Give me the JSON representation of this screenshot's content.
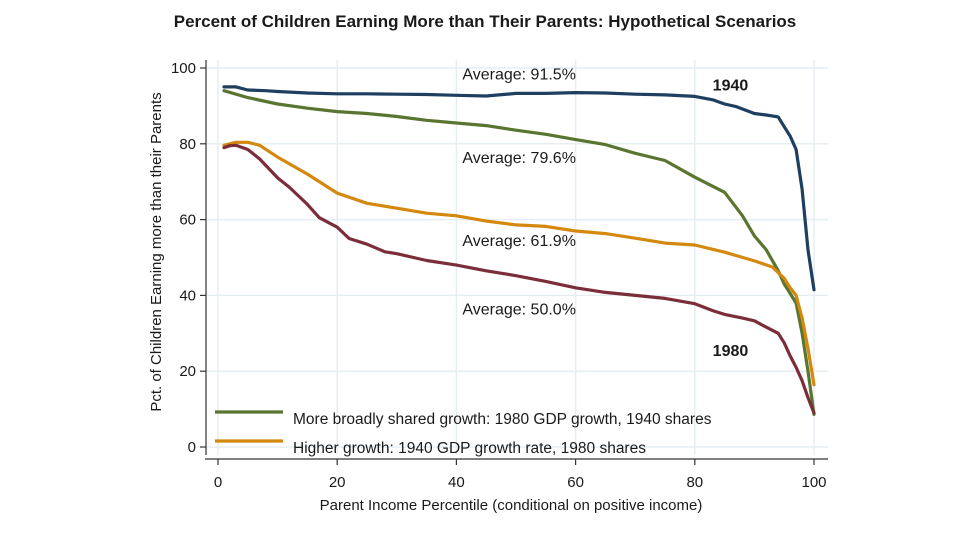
{
  "chart_data": {
    "type": "line",
    "title": "Percent of Children Earning More than Their Parents: Hypothetical Scenarios",
    "xlabel": "Parent Income Percentile (conditional on positive income)",
    "ylabel": "Pct. of Children Earning more than their Parents",
    "xlim": [
      0,
      100
    ],
    "ylim": [
      0,
      100
    ],
    "xticks": [
      0,
      20,
      40,
      60,
      80,
      100
    ],
    "yticks": [
      0,
      20,
      40,
      60,
      80,
      100
    ],
    "grid": true,
    "legend_position": "bottom-center",
    "series": [
      {
        "name": "1940",
        "color": "#1f3f60",
        "x": [
          1,
          3,
          5,
          8,
          10,
          15,
          20,
          25,
          30,
          35,
          40,
          45,
          50,
          55,
          60,
          65,
          70,
          75,
          80,
          83,
          85,
          87,
          90,
          92,
          94,
          95,
          96,
          97,
          98,
          99,
          100
        ],
        "y": [
          95,
          95,
          94.2,
          94,
          93.8,
          93.4,
          93.2,
          93.2,
          93.1,
          93,
          92.8,
          92.6,
          93.3,
          93.3,
          93.5,
          93.4,
          93.1,
          92.9,
          92.5,
          91.6,
          90.5,
          89.8,
          88,
          87.6,
          87.1,
          84.5,
          82,
          78.5,
          68,
          52,
          41.5
        ]
      },
      {
        "name": "More broadly shared growth: 1980 GDP growth, 1940 shares",
        "color": "#5a7530",
        "x": [
          1,
          5,
          10,
          15,
          20,
          25,
          30,
          35,
          40,
          45,
          50,
          55,
          60,
          65,
          70,
          75,
          80,
          85,
          88,
          90,
          92,
          94,
          95,
          96,
          97,
          98,
          99,
          100
        ],
        "y": [
          94,
          92.2,
          90.5,
          89.4,
          88.5,
          88,
          87.2,
          86.2,
          85.5,
          84.8,
          83.6,
          82.5,
          81.1,
          79.8,
          77.5,
          75.6,
          71.2,
          67.2,
          61,
          55.7,
          52,
          46.5,
          43,
          40.5,
          38,
          30,
          20,
          8.6
        ]
      },
      {
        "name": "Higher growth: 1940 GDP growth rate, 1980 shares",
        "color": "#d4880e",
        "x": [
          1,
          2,
          3,
          5,
          7,
          10,
          15,
          20,
          25,
          30,
          35,
          40,
          45,
          50,
          55,
          60,
          65,
          70,
          75,
          80,
          85,
          90,
          93,
          95,
          96,
          97,
          98,
          99,
          100
        ],
        "y": [
          79.6,
          80,
          80.4,
          80.4,
          79.6,
          76.5,
          72,
          67,
          64.3,
          63,
          61.7,
          61,
          59.6,
          58.6,
          58.2,
          57,
          56.3,
          55.1,
          53.8,
          53.3,
          51.4,
          49.1,
          47.5,
          44.5,
          42,
          40,
          34,
          26,
          16.4
        ]
      },
      {
        "name": "1980",
        "color": "#7b2d3a",
        "x": [
          1,
          2,
          3,
          5,
          7,
          10,
          12,
          15,
          17,
          20,
          22,
          25,
          28,
          30,
          35,
          40,
          45,
          50,
          55,
          60,
          65,
          70,
          75,
          80,
          83,
          85,
          88,
          90,
          92,
          94,
          95,
          96,
          97,
          98,
          99,
          100
        ],
        "y": [
          79,
          79.5,
          79.6,
          78.5,
          76,
          71,
          68.5,
          64,
          60.5,
          58,
          55,
          53.5,
          51.5,
          51,
          49.2,
          48,
          46.5,
          45.2,
          43.7,
          42,
          40.8,
          40,
          39.2,
          37.8,
          36,
          35,
          34,
          33.3,
          31.6,
          30,
          27.5,
          24,
          21,
          17.5,
          13,
          9
        ]
      }
    ],
    "annotations": [
      {
        "text": "Average: 91.5%",
        "x": 41,
        "y": 97
      },
      {
        "text": "1940",
        "x": 83,
        "y": 94
      },
      {
        "text": "Average: 79.6%",
        "x": 41,
        "y": 75
      },
      {
        "text": "Average: 61.9%",
        "x": 41,
        "y": 53
      },
      {
        "text": "Average: 50.0%",
        "x": 41,
        "y": 35
      },
      {
        "text": "1980",
        "x": 83,
        "y": 24
      }
    ],
    "legend": [
      {
        "label": "More broadly shared growth: 1980 GDP growth, 1940 shares",
        "color": "#5a7530"
      },
      {
        "label": "Higher growth: 1940 GDP growth rate, 1980 shares",
        "color": "#d4880e"
      }
    ]
  }
}
